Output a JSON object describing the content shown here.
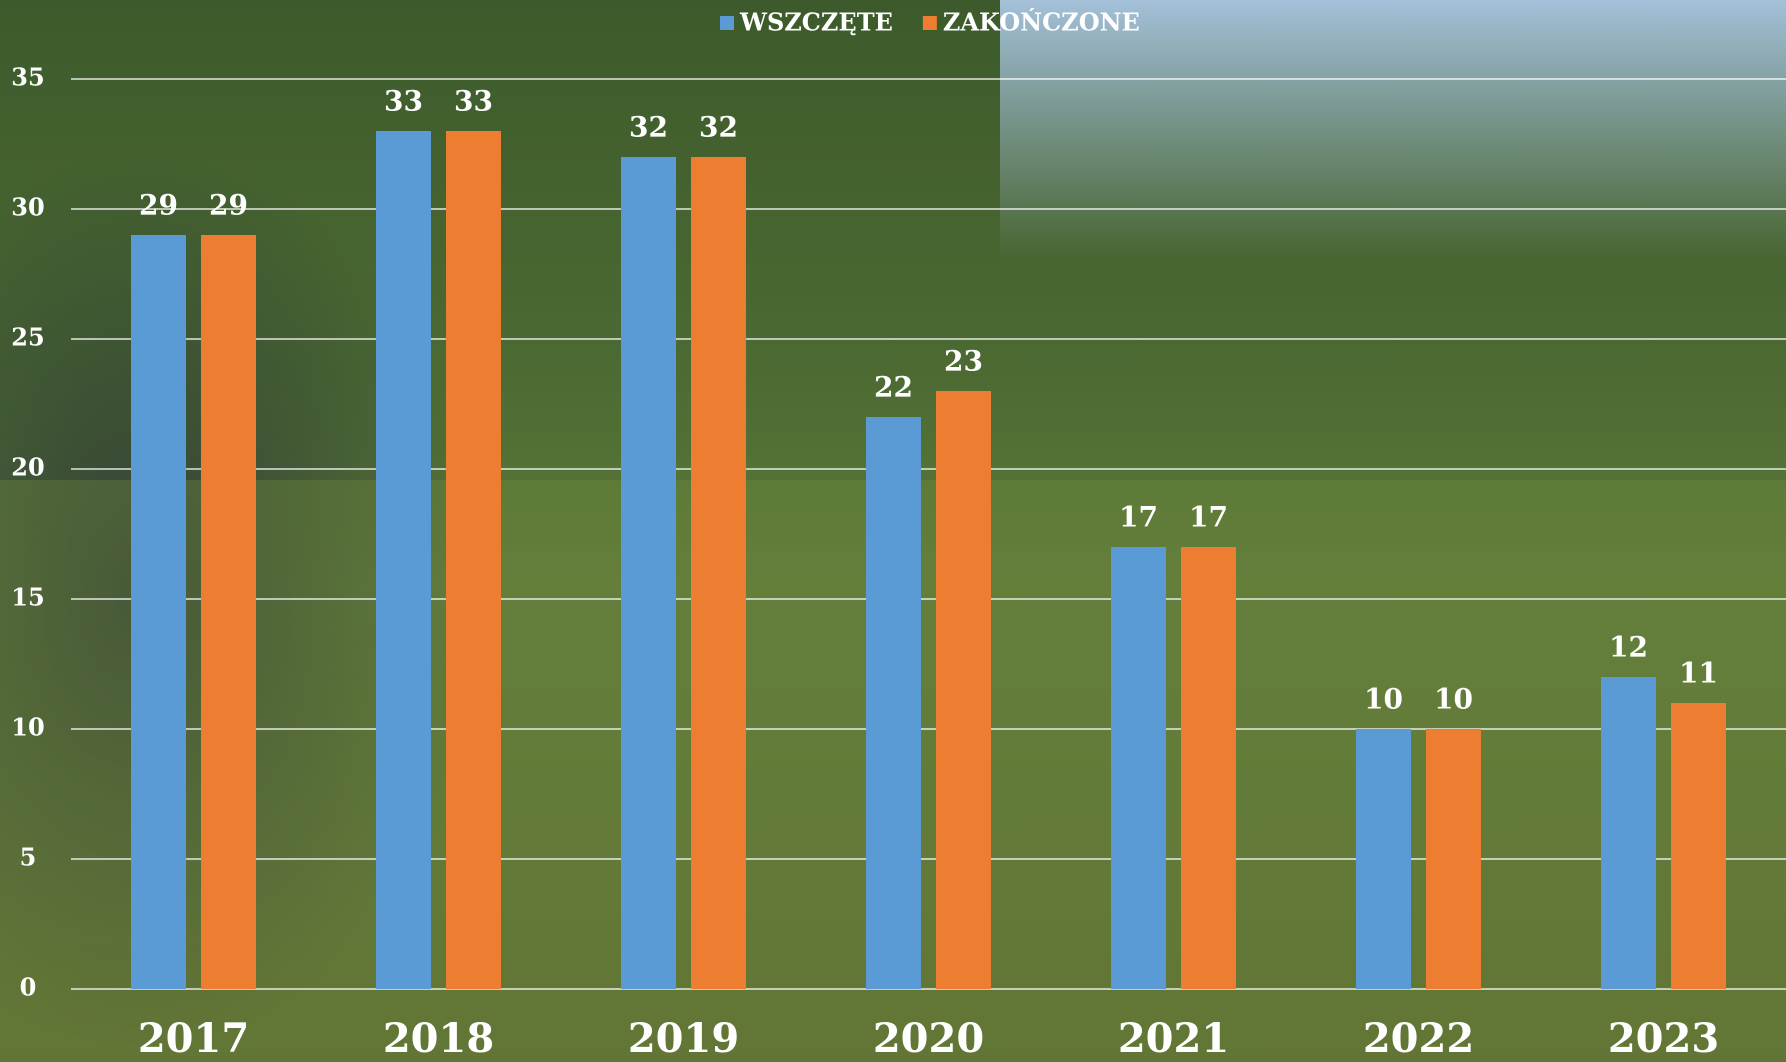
{
  "chart_data": {
    "type": "bar",
    "categories": [
      "2017",
      "2018",
      "2019",
      "2020",
      "2021",
      "2022",
      "2023"
    ],
    "series": [
      {
        "name": "WSZCZĘTE",
        "color": "#5b9bd5",
        "values": [
          29,
          33,
          32,
          22,
          17,
          10,
          12
        ]
      },
      {
        "name": "ZAKOŃCZONE",
        "color": "#ed7d31",
        "values": [
          29,
          33,
          32,
          23,
          17,
          10,
          11
        ]
      }
    ],
    "ylim": [
      0,
      35
    ],
    "yticks": [
      0,
      5,
      10,
      15,
      20,
      25,
      30,
      35
    ],
    "grid": true,
    "legend": "top"
  }
}
